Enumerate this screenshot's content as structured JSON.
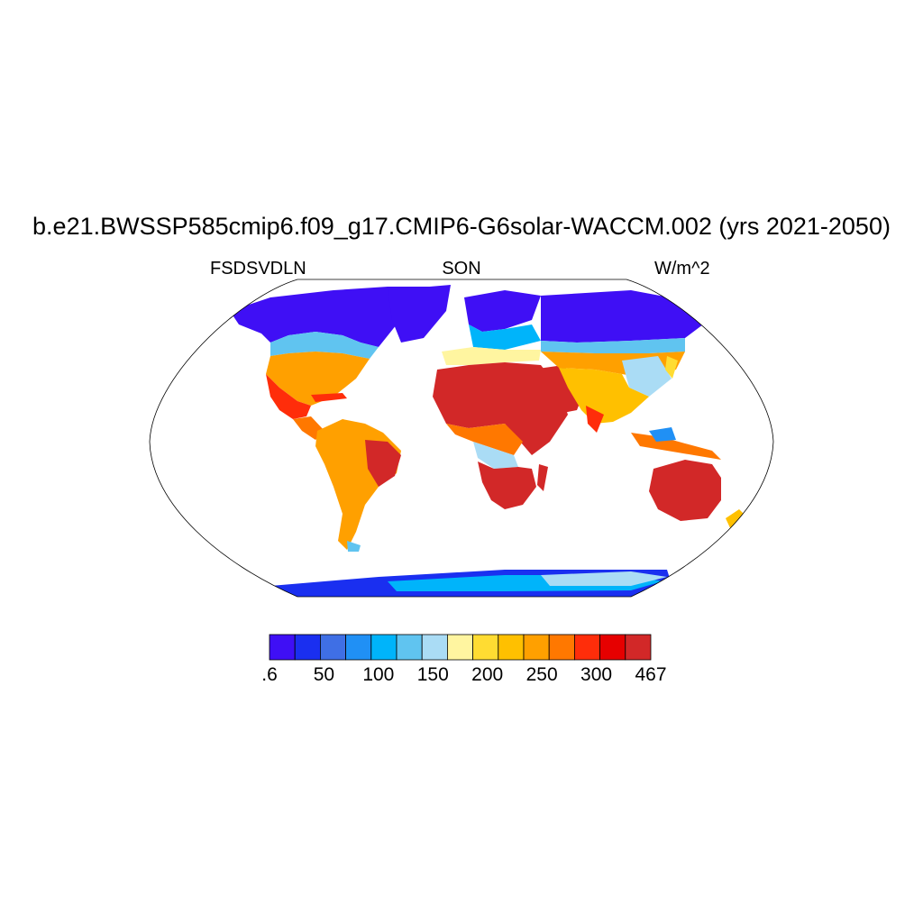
{
  "title": "b.e21.BWSSP585cmip6.f09_g17.CMIP6-G6solar-WACCM.002 (yrs 2021-2050)",
  "left_string": "FSDSVDLN",
  "center_string": "SON",
  "right_string": "W/m^2",
  "colorbar": {
    "colors": [
      "#3f0ff5",
      "#1a2ff0",
      "#3f6fe5",
      "#2090f5",
      "#00b4fa",
      "#60c4f0",
      "#aadcf5",
      "#fff5a0",
      "#ffdc32",
      "#ffc000",
      "#ffa000",
      "#ff7800",
      "#ff2d0a",
      "#e60000",
      "#d22828"
    ],
    "labels": [
      ".6",
      "50",
      "100",
      "150",
      "200",
      "250",
      "300",
      "467"
    ]
  }
}
